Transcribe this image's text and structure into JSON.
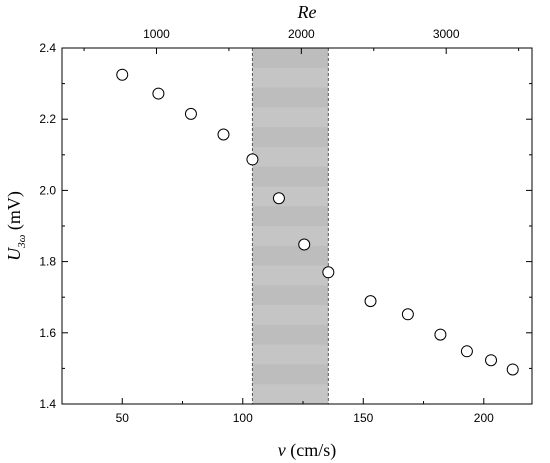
{
  "chart_data": {
    "type": "scatter",
    "xlabel": {
      "symbol": "v",
      "unit": " (cm/s)"
    },
    "ylabel": {
      "symbol": "U",
      "subscript": "3ω",
      "unit": " (mV)"
    },
    "top_axis_label": "Re",
    "xlim": [
      25,
      220
    ],
    "ylim": [
      1.4,
      2.4
    ],
    "x_ticks": [
      {
        "value": 50,
        "label": "50"
      },
      {
        "value": 100,
        "label": "100"
      },
      {
        "value": 150,
        "label": "150"
      },
      {
        "value": 200,
        "label": "200"
      }
    ],
    "y_ticks": [
      {
        "value": 1.4,
        "label": "1.4"
      },
      {
        "value": 1.6,
        "label": "1.6"
      },
      {
        "value": 1.8,
        "label": "1.8"
      },
      {
        "value": 2.0,
        "label": "2.0"
      },
      {
        "value": 2.2,
        "label": "2.2"
      },
      {
        "value": 2.4,
        "label": "2.4"
      }
    ],
    "top_ticks": [
      {
        "value": 64.2,
        "label": "1000"
      },
      {
        "value": 124.3,
        "label": "2000"
      },
      {
        "value": 184.4,
        "label": "3000"
      }
    ],
    "shaded_region": {
      "x_start": 104,
      "x_end": 135.5,
      "color": "#bdbdbd"
    },
    "points": [
      {
        "x": 50,
        "y": 2.325
      },
      {
        "x": 65,
        "y": 2.272
      },
      {
        "x": 78.5,
        "y": 2.215
      },
      {
        "x": 92,
        "y": 2.157
      },
      {
        "x": 104,
        "y": 2.087
      },
      {
        "x": 115,
        "y": 1.978
      },
      {
        "x": 125.5,
        "y": 1.848
      },
      {
        "x": 135.5,
        "y": 1.77
      },
      {
        "x": 153,
        "y": 1.689
      },
      {
        "x": 168.5,
        "y": 1.652
      },
      {
        "x": 182,
        "y": 1.595
      },
      {
        "x": 193,
        "y": 1.548
      },
      {
        "x": 203,
        "y": 1.523
      },
      {
        "x": 212,
        "y": 1.497
      }
    ],
    "marker": "open-circle",
    "colors": {
      "axis": "#000000",
      "marker_fill": "#ffffff",
      "marker_edge": "#000000"
    }
  }
}
